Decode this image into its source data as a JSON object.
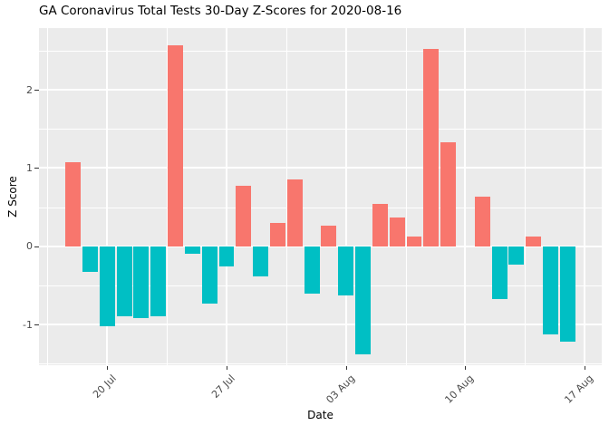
{
  "chart_data": {
    "type": "bar",
    "title": "GA Coronavirus Total Tests 30-Day Z-Scores for 2020-08-16",
    "xlabel": "Date",
    "ylabel": "Z Score",
    "x": [
      "2020-07-18",
      "2020-07-19",
      "2020-07-20",
      "2020-07-21",
      "2020-07-22",
      "2020-07-23",
      "2020-07-24",
      "2020-07-25",
      "2020-07-26",
      "2020-07-27",
      "2020-07-28",
      "2020-07-29",
      "2020-07-30",
      "2020-07-31",
      "2020-08-01",
      "2020-08-02",
      "2020-08-03",
      "2020-08-04",
      "2020-08-05",
      "2020-08-06",
      "2020-08-07",
      "2020-08-08",
      "2020-08-09",
      "2020-08-10",
      "2020-08-11",
      "2020-08-12",
      "2020-08-13",
      "2020-08-14",
      "2020-08-15",
      "2020-08-16"
    ],
    "values": [
      1.08,
      -0.33,
      -1.02,
      -0.9,
      -0.92,
      -0.9,
      2.57,
      -0.1,
      -0.73,
      -0.26,
      0.77,
      -0.38,
      0.3,
      0.86,
      -0.6,
      0.27,
      -0.63,
      -1.38,
      0.54,
      0.37,
      0.12,
      2.52,
      1.33,
      0.0,
      0.63,
      -0.68,
      -0.23,
      0.13,
      -1.13,
      -1.22
    ],
    "x_tick_labels": [
      "20 Jul",
      "27 Jul",
      "03 Aug",
      "10 Aug",
      "17 Aug"
    ],
    "x_tick_day_index": [
      2,
      9,
      16,
      23,
      30
    ],
    "x_minor_day_index": [
      -1.5,
      5.5,
      12.5,
      19.5,
      26.5
    ],
    "xlim_days": [
      -2,
      31
    ],
    "y_major_ticks": [
      -1,
      0,
      1,
      2
    ],
    "y_tick_labels": [
      "-1",
      "0",
      "1",
      "2"
    ],
    "y_minor_ticks": [
      -1.5,
      -0.5,
      0.5,
      1.5,
      2.5
    ],
    "ylim": [
      -1.52,
      2.79
    ],
    "bar_width_days": 0.9,
    "grid": true,
    "legend_position": "none",
    "positive_color": "#F8766D",
    "negative_color": "#00BFC4",
    "panel_background": "#EBEBEB",
    "gridline_color": "#FFFFFF"
  }
}
